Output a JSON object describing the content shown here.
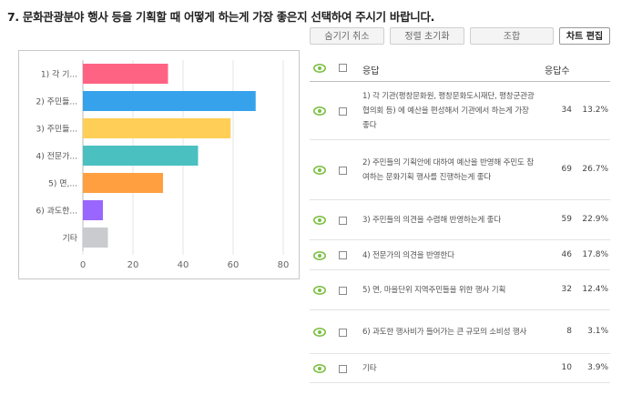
{
  "question": "7. 문화관광분야 행사 등을 기획할 때 어떻게 하는게 가장 좋은지 선택하여 주시기 바랍니다.",
  "toolbar": {
    "hide_cancel": "숨기기 취소",
    "reset_sort": "정렬 초기화",
    "combine": "조합",
    "edit_chart": "차트 편집"
  },
  "table_header": {
    "response": "응답",
    "count": "응답수"
  },
  "colors": {
    "eye_icon": "#7bc043",
    "bar_colors": [
      "#ff6384",
      "#36a2eb",
      "#ffce56",
      "#4bc0c0",
      "#ff9f40",
      "#9966ff",
      "#c9cbcf"
    ]
  },
  "responses": [
    {
      "text": "1) 각 기관(평창문화원, 평창문화도시재단, 평창군관광협의회 등) 에 예산을 편성해서 기관에서 하는게 가장 좋다",
      "count": "34",
      "percent": "13.2%"
    },
    {
      "text": "2) 주민들의 기획안에 대하여 예산을 반영해 주민도 참여하는 문화기획 행사를 진행하는게 좋다",
      "count": "69",
      "percent": "26.7%"
    },
    {
      "text": "3) 주민들의 의견을 수렴해 반영하는게 좋다",
      "count": "59",
      "percent": "22.9%"
    },
    {
      "text": "4) 전문가의 의견을 반영한다",
      "count": "46",
      "percent": "17.8%"
    },
    {
      "text": "5) 면, 마을단위 지역주민들을 위한 행사 기획",
      "count": "32",
      "percent": "12.4%"
    },
    {
      "text": "6) 과도한 행사비가 들어가는 큰 규모의 소비성 행사",
      "count": "8",
      "percent": "3.1%"
    },
    {
      "text": "기타",
      "count": "10",
      "percent": "3.9%"
    }
  ],
  "chart_data": {
    "type": "bar",
    "orientation": "horizontal",
    "categories": [
      "1) 각 기...",
      "2) 주민들...",
      "3) 주민들...",
      "4) 전문가...",
      "5) 면,...",
      "6) 과도한...",
      "기타"
    ],
    "values": [
      34,
      69,
      59,
      46,
      32,
      8,
      10
    ],
    "xlim": [
      0,
      80
    ],
    "xticks": [
      "0",
      "20",
      "40",
      "60",
      "80"
    ],
    "grid": true
  }
}
